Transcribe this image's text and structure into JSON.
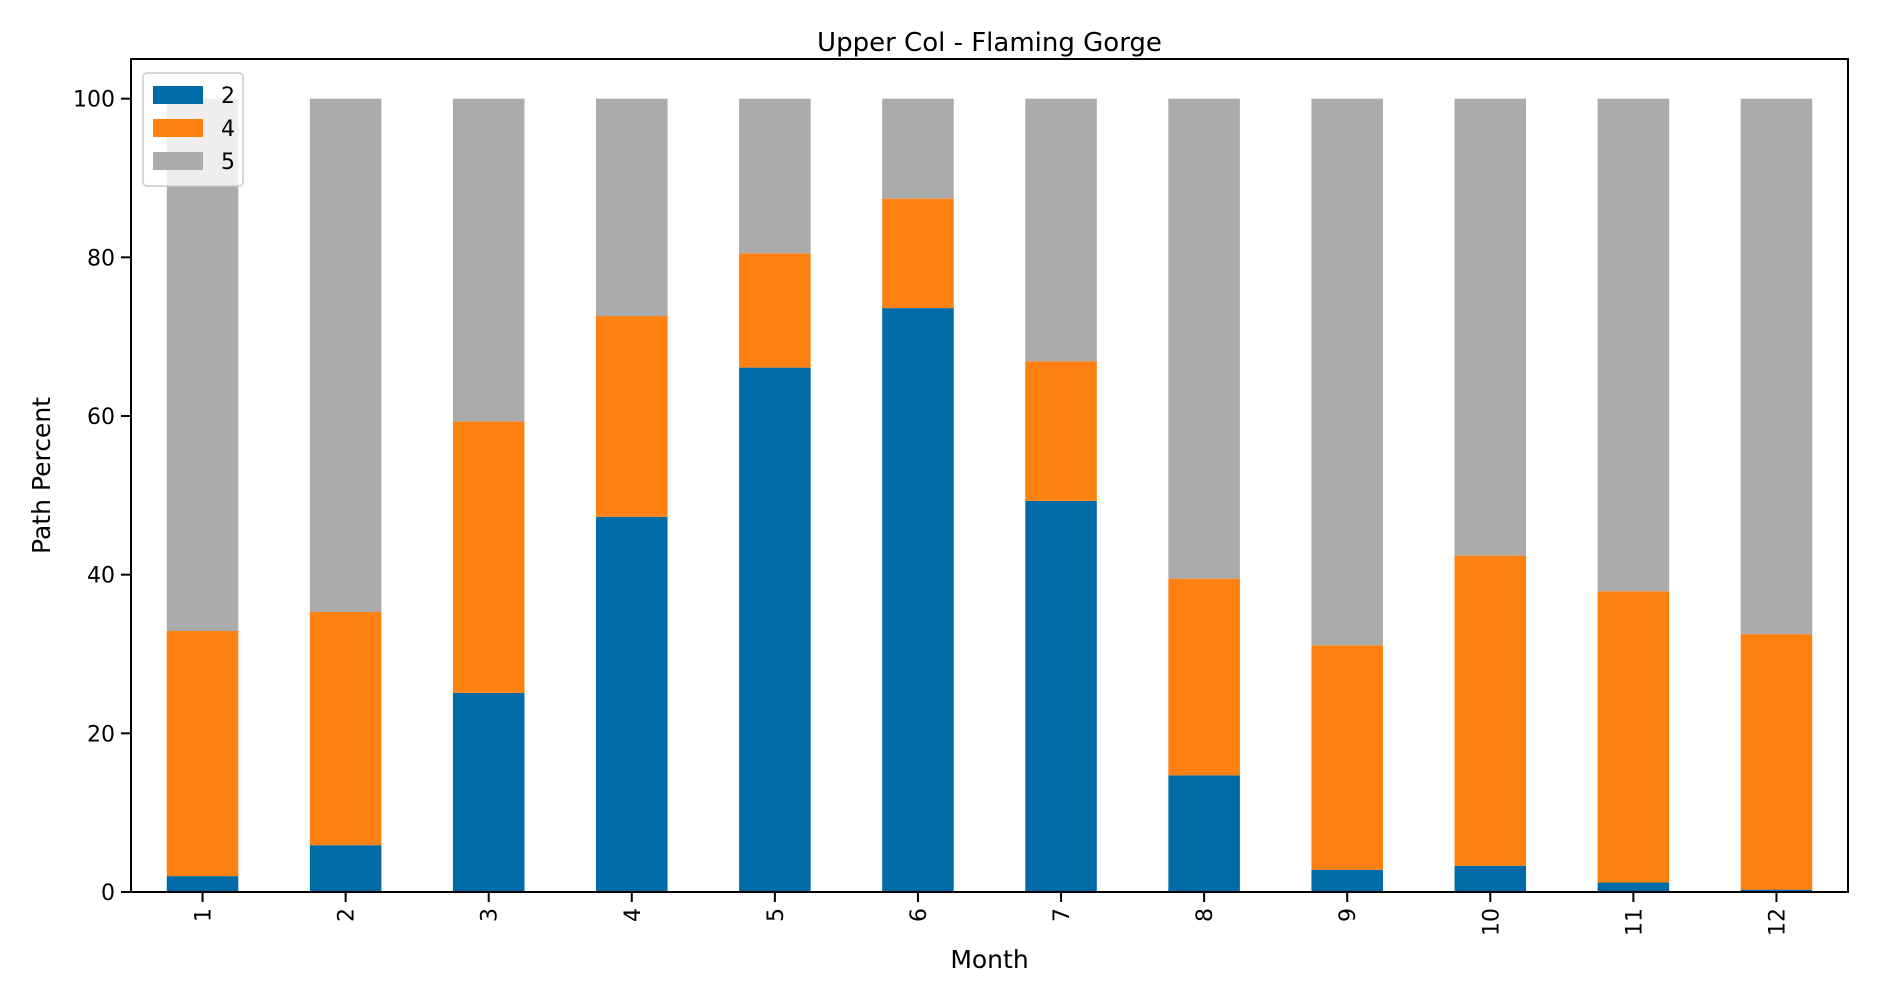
{
  "chart_data": {
    "type": "bar",
    "stacked": true,
    "title": "Upper Col - Flaming Gorge",
    "xlabel": "Month",
    "ylabel": "Path Percent",
    "ylim": [
      0,
      105
    ],
    "yticks": [
      0,
      20,
      40,
      60,
      80,
      100
    ],
    "categories": [
      "1",
      "2",
      "3",
      "4",
      "5",
      "6",
      "7",
      "8",
      "9",
      "10",
      "11",
      "12"
    ],
    "legend_position": "top-left",
    "grid": false,
    "series": [
      {
        "name": "2",
        "color": "#016ba7",
        "values": [
          2.0,
          5.9,
          25.1,
          47.3,
          66.1,
          73.6,
          49.3,
          14.7,
          2.8,
          3.3,
          1.2,
          0.3
        ]
      },
      {
        "name": "4",
        "color": "#fe8010",
        "values": [
          30.9,
          29.4,
          34.2,
          25.3,
          14.4,
          13.8,
          17.6,
          24.8,
          28.3,
          39.1,
          36.7,
          32.2
        ]
      },
      {
        "name": "5",
        "color": "#ababab",
        "values": [
          67.1,
          64.7,
          40.7,
          27.4,
          19.5,
          12.6,
          33.1,
          60.5,
          68.9,
          57.6,
          62.1,
          67.5
        ]
      }
    ]
  }
}
